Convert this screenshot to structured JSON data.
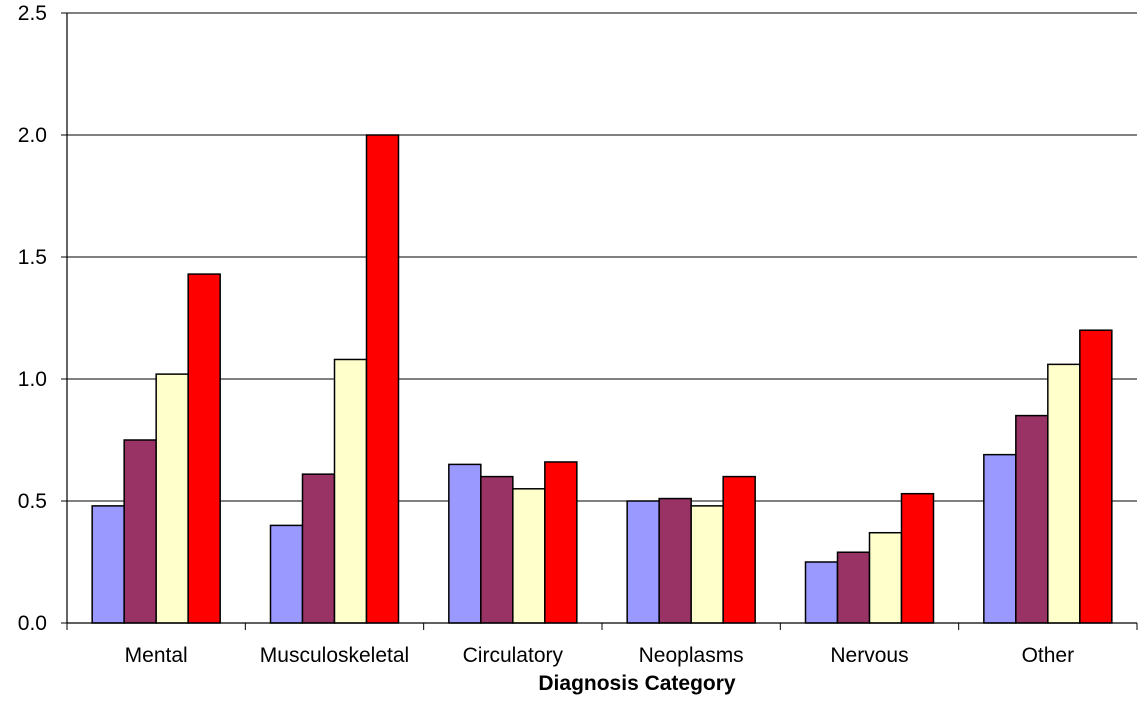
{
  "chart_data": {
    "type": "bar",
    "title": "",
    "xlabel": "Diagnosis Category",
    "ylabel": "",
    "ylim": [
      0,
      2.5
    ],
    "yticks": [
      "0.0",
      "0.5",
      "1.0",
      "1.5",
      "2.0",
      "2.5"
    ],
    "grid": true,
    "legend": "none",
    "categories": [
      "Mental",
      "Musculoskeletal",
      "Circulatory",
      "Neoplasms",
      "Nervous",
      "Other"
    ],
    "series": [
      {
        "color": "#9999ff",
        "values": [
          0.48,
          0.4,
          0.65,
          0.5,
          0.25,
          0.69
        ]
      },
      {
        "color": "#993366",
        "values": [
          0.75,
          0.61,
          0.6,
          0.51,
          0.29,
          0.85
        ]
      },
      {
        "color": "#ffffcc",
        "values": [
          1.02,
          1.08,
          0.55,
          0.48,
          0.37,
          1.06
        ]
      },
      {
        "color": "#ff0000",
        "values": [
          1.43,
          2.0,
          0.66,
          0.6,
          0.53,
          1.2
        ]
      }
    ]
  }
}
